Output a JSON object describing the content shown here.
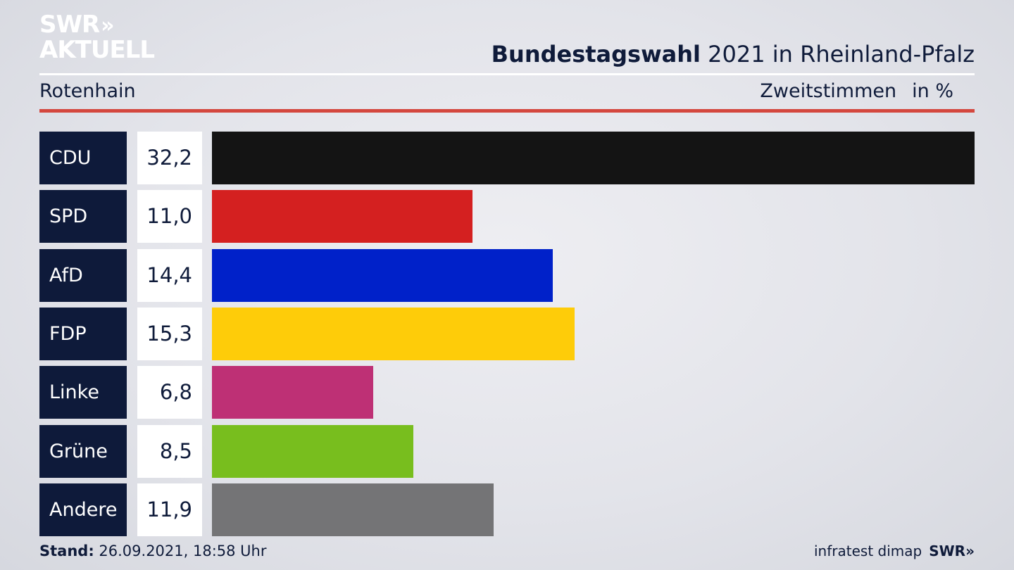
{
  "header": {
    "logo_line1": "SWR",
    "logo_chevrons": "»",
    "logo_line2": "AKTUELL",
    "title_bold": "Bundestagswahl",
    "title_rest": " 2021 in Rheinland-Pfalz",
    "region": "Rotenhain",
    "vote_type": "Zweitstimmen",
    "unit": "in %"
  },
  "chart_data": {
    "type": "bar",
    "orientation": "horizontal",
    "title": "Bundestagswahl 2021 in Rheinland-Pfalz",
    "categories": [
      "CDU",
      "SPD",
      "AfD",
      "FDP",
      "Linke",
      "Grüne",
      "Andere"
    ],
    "values": [
      32.2,
      11.0,
      14.4,
      15.3,
      6.8,
      8.5,
      11.9
    ],
    "value_labels": [
      "32,2",
      "11,0",
      "14,4",
      "15,3",
      "6,8",
      "8,5",
      "11,9"
    ],
    "colors": [
      "#141414",
      "#d42020",
      "#0021c9",
      "#fecc09",
      "#be3075",
      "#78be1e",
      "#747476"
    ],
    "xlim": [
      0,
      32.2
    ]
  },
  "footer": {
    "stand_label": "Stand:",
    "stand_value": " 26.09.2021, 18:58 Uhr",
    "source": "infratest dimap",
    "brand": "SWR»"
  }
}
